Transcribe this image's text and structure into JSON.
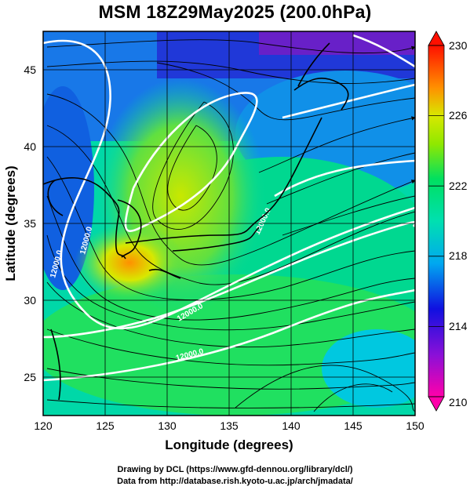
{
  "title": "MSM 18Z29May2025 (200.0hPa)",
  "map": {
    "lon_range": [
      120,
      150
    ],
    "lat_range": [
      22.5,
      47.5
    ],
    "x_ticks": [
      120,
      125,
      130,
      135,
      140,
      145,
      150
    ],
    "y_ticks": [
      25,
      30,
      35,
      40,
      45
    ],
    "xlabel": "Longitude (degrees)",
    "ylabel": "Latitude (degrees)",
    "grid_spacing_deg": 5,
    "contour_labels": [
      "12000.0",
      "12000.0",
      "12000.0",
      "12000.0",
      "12000.0"
    ]
  },
  "colorbar": {
    "range": [
      210,
      230
    ],
    "tick_labels": [
      "230",
      "226",
      "222",
      "218",
      "214",
      "210"
    ],
    "colors": [
      "#ff00aa",
      "#1010e0",
      "#00d8e8",
      "#00e060",
      "#c8e800",
      "#ff8000",
      "#ff1000"
    ]
  },
  "credits": {
    "line1": "Drawing by DCL (https://www.gfd-dennou.org/library/dcl/)",
    "line2": "Data from http://database.rish.kyoto-u.ac.jp/arch/jmadata/"
  }
}
